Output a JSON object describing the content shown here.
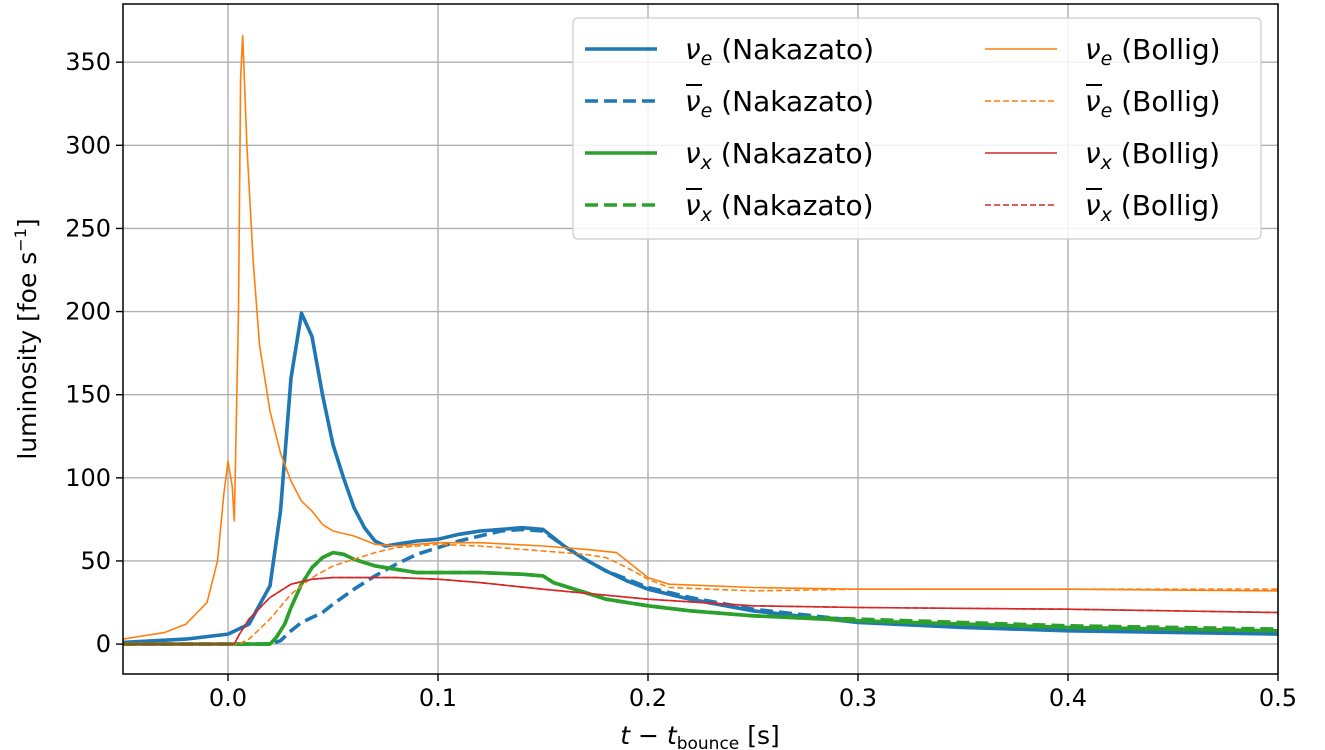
{
  "chart_data": {
    "type": "line",
    "xlabel": "t − t_bounce [s]",
    "ylabel": "luminosity [foe s⁻¹]",
    "xlim": [
      -0.05,
      0.5
    ],
    "ylim": [
      -18,
      385
    ],
    "xticks": [
      0.0,
      0.1,
      0.2,
      0.3,
      0.4,
      0.5
    ],
    "xtick_labels": [
      "0.0",
      "0.1",
      "0.2",
      "0.3",
      "0.4",
      "0.5"
    ],
    "yticks": [
      0,
      50,
      100,
      150,
      200,
      250,
      300,
      350
    ],
    "ytick_labels": [
      "0",
      "50",
      "100",
      "150",
      "200",
      "250",
      "300",
      "350"
    ],
    "grid": true,
    "legend_placement": "top-right",
    "legend_columns": 2,
    "series": [
      {
        "name": "νe (Nakazato)",
        "color": "#1f77b4",
        "style": "solid",
        "weight": "thick",
        "points": [
          [
            -0.05,
            1
          ],
          [
            -0.02,
            3
          ],
          [
            0,
            6
          ],
          [
            0.01,
            12
          ],
          [
            0.02,
            35
          ],
          [
            0.025,
            80
          ],
          [
            0.03,
            160
          ],
          [
            0.035,
            199
          ],
          [
            0.04,
            185
          ],
          [
            0.045,
            150
          ],
          [
            0.05,
            120
          ],
          [
            0.055,
            100
          ],
          [
            0.06,
            82
          ],
          [
            0.065,
            70
          ],
          [
            0.07,
            62
          ],
          [
            0.075,
            59
          ],
          [
            0.08,
            60
          ],
          [
            0.09,
            62
          ],
          [
            0.1,
            63
          ],
          [
            0.11,
            66
          ],
          [
            0.12,
            68
          ],
          [
            0.13,
            69
          ],
          [
            0.14,
            70
          ],
          [
            0.15,
            69
          ],
          [
            0.155,
            64
          ],
          [
            0.16,
            59
          ],
          [
            0.17,
            51
          ],
          [
            0.18,
            44
          ],
          [
            0.19,
            38
          ],
          [
            0.2,
            33
          ],
          [
            0.22,
            27
          ],
          [
            0.25,
            20
          ],
          [
            0.3,
            13
          ],
          [
            0.35,
            10
          ],
          [
            0.4,
            8
          ],
          [
            0.45,
            7
          ],
          [
            0.5,
            6
          ]
        ]
      },
      {
        "name": "ν̄e (Nakazato)",
        "color": "#1f77b4",
        "style": "dashed",
        "weight": "thick",
        "points": [
          [
            -0.05,
            0
          ],
          [
            0.02,
            0
          ],
          [
            0.025,
            2
          ],
          [
            0.03,
            8
          ],
          [
            0.035,
            13
          ],
          [
            0.04,
            16
          ],
          [
            0.045,
            19
          ],
          [
            0.05,
            24
          ],
          [
            0.06,
            33
          ],
          [
            0.07,
            41
          ],
          [
            0.08,
            48
          ],
          [
            0.09,
            54
          ],
          [
            0.1,
            58
          ],
          [
            0.11,
            62
          ],
          [
            0.12,
            65
          ],
          [
            0.13,
            68
          ],
          [
            0.14,
            69
          ],
          [
            0.15,
            68
          ],
          [
            0.16,
            59
          ],
          [
            0.17,
            51
          ],
          [
            0.18,
            44
          ],
          [
            0.19,
            39
          ],
          [
            0.2,
            34
          ],
          [
            0.22,
            28
          ],
          [
            0.25,
            21
          ],
          [
            0.3,
            14
          ],
          [
            0.35,
            11
          ],
          [
            0.4,
            9
          ],
          [
            0.45,
            8
          ],
          [
            0.5,
            7
          ]
        ]
      },
      {
        "name": "νx (Nakazato)",
        "color": "#2ca02c",
        "style": "solid",
        "weight": "thick",
        "points": [
          [
            -0.05,
            0
          ],
          [
            0.02,
            0
          ],
          [
            0.023,
            4
          ],
          [
            0.027,
            12
          ],
          [
            0.03,
            22
          ],
          [
            0.035,
            36
          ],
          [
            0.04,
            46
          ],
          [
            0.045,
            52
          ],
          [
            0.05,
            55
          ],
          [
            0.055,
            54
          ],
          [
            0.06,
            51
          ],
          [
            0.07,
            47
          ],
          [
            0.08,
            45
          ],
          [
            0.09,
            43
          ],
          [
            0.1,
            43
          ],
          [
            0.12,
            43
          ],
          [
            0.14,
            42
          ],
          [
            0.15,
            41
          ],
          [
            0.155,
            37
          ],
          [
            0.17,
            31
          ],
          [
            0.18,
            27
          ],
          [
            0.2,
            23
          ],
          [
            0.22,
            20
          ],
          [
            0.25,
            17
          ],
          [
            0.3,
            14
          ],
          [
            0.35,
            12
          ],
          [
            0.4,
            10
          ],
          [
            0.45,
            9
          ],
          [
            0.5,
            8
          ]
        ]
      },
      {
        "name": "ν̄x (Nakazato)",
        "color": "#2ca02c",
        "style": "dashed",
        "weight": "thick",
        "points": [
          [
            -0.05,
            0
          ],
          [
            0.02,
            0
          ],
          [
            0.023,
            4
          ],
          [
            0.027,
            12
          ],
          [
            0.03,
            22
          ],
          [
            0.035,
            36
          ],
          [
            0.04,
            46
          ],
          [
            0.045,
            52
          ],
          [
            0.05,
            55
          ],
          [
            0.055,
            54
          ],
          [
            0.06,
            51
          ],
          [
            0.07,
            47
          ],
          [
            0.08,
            45
          ],
          [
            0.09,
            43
          ],
          [
            0.1,
            43
          ],
          [
            0.12,
            43
          ],
          [
            0.14,
            42
          ],
          [
            0.15,
            41
          ],
          [
            0.155,
            37
          ],
          [
            0.17,
            31
          ],
          [
            0.18,
            27
          ],
          [
            0.2,
            23
          ],
          [
            0.22,
            20
          ],
          [
            0.25,
            17
          ],
          [
            0.3,
            15
          ],
          [
            0.35,
            13
          ],
          [
            0.4,
            11
          ],
          [
            0.45,
            10
          ],
          [
            0.5,
            9
          ]
        ]
      },
      {
        "name": "νe (Bollig)",
        "color": "#ff7f0e",
        "style": "solid",
        "weight": "thin",
        "points": [
          [
            -0.05,
            3
          ],
          [
            -0.03,
            7
          ],
          [
            -0.02,
            12
          ],
          [
            -0.01,
            25
          ],
          [
            -0.005,
            50
          ],
          [
            -0.002,
            90
          ],
          [
            0,
            110
          ],
          [
            0.002,
            95
          ],
          [
            0.003,
            74
          ],
          [
            0.005,
            200
          ],
          [
            0.006,
            340
          ],
          [
            0.007,
            366
          ],
          [
            0.009,
            300
          ],
          [
            0.012,
            230
          ],
          [
            0.015,
            180
          ],
          [
            0.02,
            140
          ],
          [
            0.025,
            115
          ],
          [
            0.03,
            98
          ],
          [
            0.035,
            86
          ],
          [
            0.04,
            80
          ],
          [
            0.045,
            72
          ],
          [
            0.05,
            68
          ],
          [
            0.06,
            65
          ],
          [
            0.07,
            60
          ],
          [
            0.08,
            59
          ],
          [
            0.09,
            60
          ],
          [
            0.1,
            61
          ],
          [
            0.12,
            61
          ],
          [
            0.15,
            59
          ],
          [
            0.17,
            57
          ],
          [
            0.185,
            55
          ],
          [
            0.19,
            50
          ],
          [
            0.2,
            40
          ],
          [
            0.21,
            36
          ],
          [
            0.25,
            34
          ],
          [
            0.3,
            33
          ],
          [
            0.4,
            33
          ],
          [
            0.5,
            32
          ]
        ]
      },
      {
        "name": "ν̄e (Bollig)",
        "color": "#ff7f0e",
        "style": "dashed",
        "weight": "thin",
        "points": [
          [
            -0.05,
            0
          ],
          [
            0.005,
            0
          ],
          [
            0.01,
            3
          ],
          [
            0.02,
            15
          ],
          [
            0.03,
            30
          ],
          [
            0.04,
            40
          ],
          [
            0.05,
            47
          ],
          [
            0.06,
            51
          ],
          [
            0.07,
            55
          ],
          [
            0.08,
            58
          ],
          [
            0.09,
            59
          ],
          [
            0.1,
            60
          ],
          [
            0.12,
            59
          ],
          [
            0.15,
            56
          ],
          [
            0.17,
            54
          ],
          [
            0.18,
            52
          ],
          [
            0.19,
            46
          ],
          [
            0.2,
            39
          ],
          [
            0.21,
            34
          ],
          [
            0.25,
            32
          ],
          [
            0.3,
            33
          ],
          [
            0.4,
            33
          ],
          [
            0.5,
            33
          ]
        ]
      },
      {
        "name": "νx (Bollig)",
        "color": "#d62728",
        "style": "solid",
        "weight": "thin",
        "points": [
          [
            -0.05,
            0
          ],
          [
            0.003,
            0
          ],
          [
            0.005,
            5
          ],
          [
            0.01,
            15
          ],
          [
            0.02,
            28
          ],
          [
            0.03,
            36
          ],
          [
            0.04,
            39
          ],
          [
            0.05,
            40
          ],
          [
            0.06,
            40
          ],
          [
            0.08,
            40
          ],
          [
            0.1,
            39
          ],
          [
            0.12,
            37
          ],
          [
            0.15,
            33
          ],
          [
            0.2,
            27
          ],
          [
            0.25,
            23
          ],
          [
            0.3,
            22
          ],
          [
            0.4,
            21
          ],
          [
            0.5,
            19
          ]
        ]
      },
      {
        "name": "ν̄x (Bollig)",
        "color": "#d62728",
        "style": "dashed",
        "weight": "thin",
        "points": [
          [
            -0.05,
            0
          ],
          [
            0.003,
            0
          ],
          [
            0.005,
            5
          ],
          [
            0.01,
            15
          ],
          [
            0.02,
            28
          ],
          [
            0.03,
            36
          ],
          [
            0.04,
            39
          ],
          [
            0.05,
            40
          ],
          [
            0.06,
            40
          ],
          [
            0.08,
            40
          ],
          [
            0.1,
            39
          ],
          [
            0.12,
            37
          ],
          [
            0.15,
            33
          ],
          [
            0.2,
            27
          ],
          [
            0.25,
            23
          ],
          [
            0.3,
            22
          ],
          [
            0.4,
            21
          ],
          [
            0.5,
            19
          ]
        ]
      }
    ],
    "legend": [
      {
        "symbol": "ν",
        "sub": "e",
        "bar": false,
        "suffix": " (Nakazato)"
      },
      {
        "symbol": "ν",
        "sub": "e",
        "bar": true,
        "suffix": " (Nakazato)"
      },
      {
        "symbol": "ν",
        "sub": "x",
        "bar": false,
        "suffix": " (Nakazato)"
      },
      {
        "symbol": "ν",
        "sub": "x",
        "bar": true,
        "suffix": " (Nakazato)"
      },
      {
        "symbol": "ν",
        "sub": "e",
        "bar": false,
        "suffix": " (Bollig)"
      },
      {
        "symbol": "ν",
        "sub": "e",
        "bar": true,
        "suffix": " (Bollig)"
      },
      {
        "symbol": "ν",
        "sub": "x",
        "bar": false,
        "suffix": " (Bollig)"
      },
      {
        "symbol": "ν",
        "sub": "x",
        "bar": true,
        "suffix": " (Bollig)"
      }
    ]
  }
}
